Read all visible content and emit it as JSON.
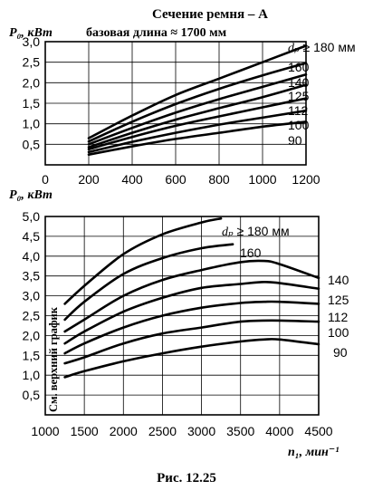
{
  "figure": {
    "caption": "Рис. 12.25"
  },
  "chart_data": [
    {
      "type": "line",
      "title": "Сечение ремня – A",
      "subtitle": "базовая длина ≈ 1700 мм",
      "ylabel": "P₀, кВт",
      "xlabel": "",
      "xlim": [
        0,
        1200
      ],
      "ylim": [
        0,
        3.0
      ],
      "xticks": [
        0,
        200,
        400,
        600,
        800,
        1000,
        1200
      ],
      "yticks": [
        0.5,
        1.0,
        1.5,
        2.0,
        2.5,
        3.0
      ],
      "xtick_labels": [
        "0",
        "200",
        "400",
        "600",
        "800",
        "1000",
        "1200"
      ],
      "ytick_labels": [
        "0,5",
        "1,0",
        "1,5",
        "2,0",
        "2,5",
        "3,0"
      ],
      "grid": true,
      "x": [
        200,
        400,
        600,
        800,
        1000,
        1200
      ],
      "series": [
        {
          "label": "dₚ ≥ 180 мм",
          "values": [
            0.65,
            1.2,
            1.7,
            2.1,
            2.5,
            2.9
          ]
        },
        {
          "label": "160",
          "values": [
            0.57,
            1.05,
            1.48,
            1.85,
            2.18,
            2.48
          ]
        },
        {
          "label": "140",
          "values": [
            0.5,
            0.9,
            1.27,
            1.6,
            1.9,
            2.2
          ]
        },
        {
          "label": "125",
          "values": [
            0.43,
            0.78,
            1.1,
            1.38,
            1.65,
            1.95
          ]
        },
        {
          "label": "112",
          "values": [
            0.38,
            0.68,
            0.95,
            1.18,
            1.4,
            1.62
          ]
        },
        {
          "label": "100",
          "values": [
            0.31,
            0.56,
            0.78,
            0.98,
            1.15,
            1.32
          ]
        },
        {
          "label": "90",
          "values": [
            0.25,
            0.45,
            0.63,
            0.78,
            0.93,
            1.05
          ]
        }
      ]
    },
    {
      "type": "line",
      "title": "",
      "ylabel": "P₀, кВт",
      "xlabel": "n₁, мин⁻¹",
      "xlim": [
        1000,
        4500
      ],
      "ylim": [
        0,
        5.0
      ],
      "xticks": [
        1000,
        1500,
        2000,
        2500,
        3000,
        3500,
        4000,
        4500
      ],
      "yticks": [
        0.5,
        1.0,
        1.5,
        2.0,
        2.5,
        3.0,
        3.5,
        4.0,
        4.5,
        5.0
      ],
      "xtick_labels": [
        "1000",
        "1500",
        "2000",
        "2500",
        "3000",
        "3500",
        "4000",
        "4500"
      ],
      "ytick_labels": [
        "0,5",
        "1,0",
        "1,5",
        "2,0",
        "2,5",
        "3,0",
        "3,5",
        "4,0",
        "4,5",
        "5,0"
      ],
      "grid": true,
      "annotation": "См. верхний график",
      "series": [
        {
          "label": "dₚ ≥ 180 мм",
          "x": [
            1250,
            1500,
            2000,
            2500,
            3000,
            3250
          ],
          "values": [
            2.8,
            3.25,
            4.05,
            4.55,
            4.85,
            4.95
          ]
        },
        {
          "label": "160",
          "x": [
            1250,
            1500,
            2000,
            2500,
            3000,
            3400
          ],
          "values": [
            2.4,
            2.85,
            3.55,
            3.95,
            4.2,
            4.3
          ]
        },
        {
          "label": "140",
          "x": [
            1250,
            1500,
            2000,
            2500,
            3000,
            3500,
            3800,
            4000,
            4500
          ],
          "values": [
            2.1,
            2.4,
            3.0,
            3.4,
            3.65,
            3.85,
            3.88,
            3.8,
            3.45
          ]
        },
        {
          "label": "125",
          "x": [
            1250,
            1500,
            2000,
            2500,
            3000,
            3500,
            3800,
            4000,
            4500
          ],
          "values": [
            1.8,
            2.1,
            2.6,
            2.95,
            3.2,
            3.3,
            3.35,
            3.32,
            3.18
          ]
        },
        {
          "label": "112",
          "x": [
            1250,
            1500,
            2000,
            2500,
            3000,
            3500,
            3800,
            4000,
            4500
          ],
          "values": [
            1.55,
            1.8,
            2.2,
            2.5,
            2.7,
            2.82,
            2.85,
            2.85,
            2.8
          ]
        },
        {
          "label": "100",
          "x": [
            1250,
            1500,
            2000,
            2500,
            3000,
            3500,
            3900,
            4500
          ],
          "values": [
            1.3,
            1.45,
            1.8,
            2.05,
            2.2,
            2.35,
            2.38,
            2.35
          ]
        },
        {
          "label": "90",
          "x": [
            1250,
            1500,
            2000,
            2500,
            3000,
            3500,
            3800,
            4000,
            4500
          ],
          "values": [
            0.95,
            1.1,
            1.35,
            1.55,
            1.72,
            1.85,
            1.9,
            1.9,
            1.78
          ]
        }
      ]
    }
  ]
}
